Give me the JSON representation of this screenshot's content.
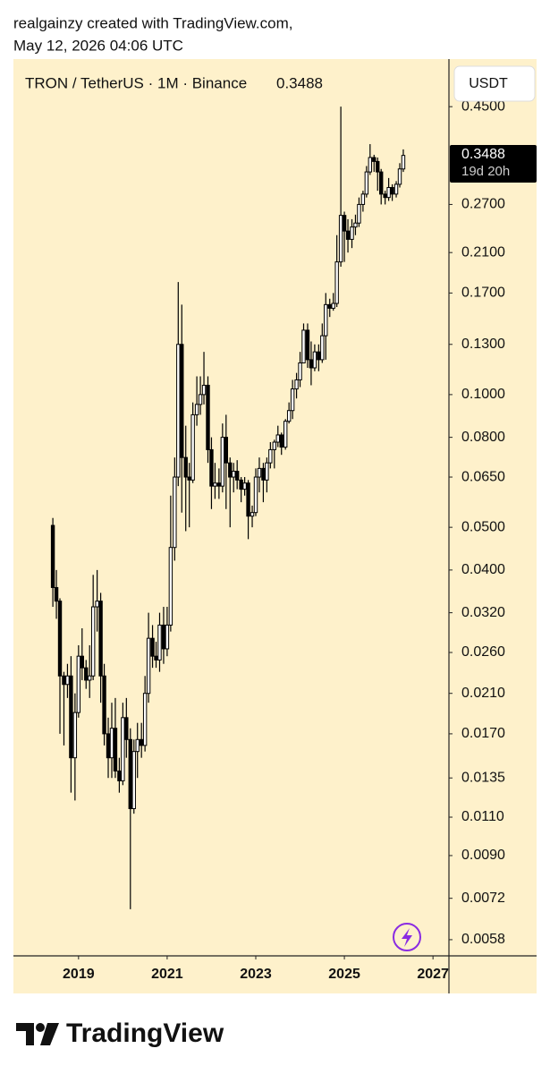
{
  "header": {
    "line1": "realgainzy created with TradingView.com,",
    "line2": "May 12, 2026 04:06 UTC"
  },
  "footer": {
    "brand": "TradingView"
  },
  "chart_data": {
    "type": "candlestick",
    "title": "TRON / TetherUS · 1M · Binance",
    "currency": "USDT",
    "countdown": "19d 20h",
    "log_scale": true,
    "grid": false,
    "up_color": "#ffffff",
    "down_color": "#000000",
    "color": "#000000",
    "background": "#fef1cb",
    "xlim": [
      2017.53,
      2027.36
    ],
    "xticks": [
      2019,
      2021,
      2023,
      2025,
      2027
    ],
    "ylim": [
      0.00533,
      0.577
    ],
    "yticks": [
      {
        "value": 0.45,
        "label": "0.4500"
      },
      {
        "value": 0.27,
        "label": "0.2700"
      },
      {
        "value": 0.21,
        "label": "0.2100"
      },
      {
        "value": 0.17,
        "label": "0.1700"
      },
      {
        "value": 0.13,
        "label": "0.1300"
      },
      {
        "value": 0.1,
        "label": "0.1000"
      },
      {
        "value": 0.08,
        "label": "0.0800"
      },
      {
        "value": 0.065,
        "label": "0.0650"
      },
      {
        "value": 0.05,
        "label": "0.0500"
      },
      {
        "value": 0.04,
        "label": "0.0400"
      },
      {
        "value": 0.032,
        "label": "0.0320"
      },
      {
        "value": 0.026,
        "label": "0.0260"
      },
      {
        "value": 0.021,
        "label": "0.0210"
      },
      {
        "value": 0.017,
        "label": "0.0170"
      },
      {
        "value": 0.0135,
        "label": "0.0135"
      },
      {
        "value": 0.011,
        "label": "0.0110"
      },
      {
        "value": 0.009,
        "label": "0.0090"
      },
      {
        "value": 0.0072,
        "label": "0.0072"
      },
      {
        "value": 0.0058,
        "label": "0.0058"
      }
    ],
    "x": [
      2018.42,
      2018.5,
      2018.58,
      2018.67,
      2018.75,
      2018.83,
      2018.92,
      2019,
      2019.08,
      2019.17,
      2019.25,
      2019.33,
      2019.42,
      2019.5,
      2019.58,
      2019.67,
      2019.75,
      2019.83,
      2019.92,
      2020,
      2020.08,
      2020.17,
      2020.25,
      2020.33,
      2020.42,
      2020.5,
      2020.58,
      2020.67,
      2020.75,
      2020.83,
      2020.92,
      2021,
      2021.08,
      2021.17,
      2021.25,
      2021.33,
      2021.42,
      2021.5,
      2021.58,
      2021.67,
      2021.75,
      2021.83,
      2021.92,
      2022,
      2022.08,
      2022.17,
      2022.25,
      2022.33,
      2022.42,
      2022.5,
      2022.58,
      2022.67,
      2022.75,
      2022.83,
      2022.92,
      2023,
      2023.08,
      2023.17,
      2023.25,
      2023.33,
      2023.42,
      2023.5,
      2023.58,
      2023.67,
      2023.75,
      2023.83,
      2023.92,
      2024,
      2024.08,
      2024.17,
      2024.25,
      2024.33,
      2024.42,
      2024.5,
      2024.58,
      2024.67,
      2024.75,
      2024.83,
      2024.92,
      2025,
      2025.08,
      2025.17,
      2025.25,
      2025.33,
      2025.42,
      2025.5,
      2025.58,
      2025.67,
      2025.75,
      2025.83,
      2025.92,
      2026,
      2026.08,
      2026.17,
      2026.25,
      2026.33
    ],
    "open": [
      0.0505,
      0.0365,
      0.034,
      0.023,
      0.022,
      0.023,
      0.015,
      0.019,
      0.0255,
      0.024,
      0.0225,
      0.023,
      0.033,
      0.034,
      0.023,
      0.017,
      0.015,
      0.0175,
      0.014,
      0.0133,
      0.0185,
      0.0165,
      0.0115,
      0.0155,
      0.0165,
      0.016,
      0.021,
      0.028,
      0.0255,
      0.025,
      0.03,
      0.0265,
      0.03,
      0.045,
      0.065,
      0.13,
      0.072,
      0.065,
      0.064,
      0.09,
      0.095,
      0.1,
      0.105,
      0.075,
      0.062,
      0.063,
      0.062,
      0.08,
      0.07,
      0.065,
      0.067,
      0.064,
      0.061,
      0.063,
      0.053,
      0.054,
      0.065,
      0.068,
      0.064,
      0.07,
      0.075,
      0.078,
      0.081,
      0.076,
      0.087,
      0.092,
      0.103,
      0.108,
      0.118,
      0.14,
      0.12,
      0.115,
      0.125,
      0.12,
      0.136,
      0.16,
      0.157,
      0.161,
      0.2,
      0.255,
      0.235,
      0.225,
      0.24,
      0.245,
      0.27,
      0.285,
      0.32,
      0.345,
      0.338,
      0.32,
      0.285,
      0.28,
      0.295,
      0.285,
      0.3,
      0.325
    ],
    "high": [
      0.0525,
      0.04,
      0.0345,
      0.0235,
      0.0245,
      0.0255,
      0.021,
      0.027,
      0.0295,
      0.025,
      0.027,
      0.039,
      0.04,
      0.0355,
      0.0245,
      0.0185,
      0.02,
      0.0205,
      0.015,
      0.02,
      0.0205,
      0.0175,
      0.0165,
      0.018,
      0.018,
      0.023,
      0.032,
      0.03,
      0.0275,
      0.032,
      0.033,
      0.033,
      0.059,
      0.072,
      0.18,
      0.16,
      0.085,
      0.07,
      0.096,
      0.11,
      0.11,
      0.125,
      0.11,
      0.08,
      0.07,
      0.068,
      0.086,
      0.09,
      0.072,
      0.07,
      0.071,
      0.065,
      0.065,
      0.064,
      0.056,
      0.068,
      0.072,
      0.07,
      0.072,
      0.078,
      0.079,
      0.085,
      0.082,
      0.088,
      0.096,
      0.108,
      0.112,
      0.125,
      0.145,
      0.145,
      0.132,
      0.13,
      0.13,
      0.145,
      0.17,
      0.165,
      0.17,
      0.23,
      0.45,
      0.26,
      0.25,
      0.25,
      0.256,
      0.28,
      0.29,
      0.33,
      0.37,
      0.35,
      0.345,
      0.325,
      0.29,
      0.31,
      0.3,
      0.305,
      0.335,
      0.36
    ],
    "low": [
      0.033,
      0.031,
      0.017,
      0.016,
      0.0205,
      0.0125,
      0.012,
      0.0185,
      0.0225,
      0.0215,
      0.0205,
      0.0225,
      0.029,
      0.02,
      0.016,
      0.0135,
      0.0135,
      0.0135,
      0.0125,
      0.013,
      0.015,
      0.0068,
      0.0112,
      0.0135,
      0.015,
      0.0155,
      0.02,
      0.024,
      0.024,
      0.0235,
      0.0245,
      0.0255,
      0.029,
      0.042,
      0.062,
      0.054,
      0.049,
      0.05,
      0.063,
      0.085,
      0.09,
      0.095,
      0.07,
      0.055,
      0.058,
      0.058,
      0.06,
      0.055,
      0.05,
      0.06,
      0.061,
      0.057,
      0.059,
      0.047,
      0.05,
      0.053,
      0.06,
      0.057,
      0.06,
      0.068,
      0.068,
      0.076,
      0.073,
      0.075,
      0.086,
      0.088,
      0.098,
      0.104,
      0.118,
      0.115,
      0.105,
      0.113,
      0.113,
      0.118,
      0.12,
      0.15,
      0.155,
      0.158,
      0.195,
      0.2,
      0.21,
      0.215,
      0.23,
      0.24,
      0.26,
      0.28,
      0.315,
      0.32,
      0.29,
      0.27,
      0.27,
      0.275,
      0.275,
      0.28,
      0.295,
      0.32
    ],
    "close": [
      0.0365,
      0.034,
      0.023,
      0.022,
      0.023,
      0.015,
      0.019,
      0.0255,
      0.024,
      0.0225,
      0.023,
      0.033,
      0.034,
      0.023,
      0.017,
      0.015,
      0.0175,
      0.014,
      0.0133,
      0.0185,
      0.0165,
      0.0115,
      0.0155,
      0.0165,
      0.016,
      0.021,
      0.028,
      0.0255,
      0.025,
      0.03,
      0.0265,
      0.03,
      0.045,
      0.065,
      0.13,
      0.072,
      0.065,
      0.064,
      0.09,
      0.095,
      0.1,
      0.105,
      0.075,
      0.062,
      0.063,
      0.062,
      0.08,
      0.07,
      0.065,
      0.067,
      0.064,
      0.061,
      0.063,
      0.053,
      0.054,
      0.065,
      0.068,
      0.064,
      0.07,
      0.075,
      0.078,
      0.081,
      0.076,
      0.087,
      0.092,
      0.103,
      0.108,
      0.118,
      0.14,
      0.12,
      0.115,
      0.125,
      0.12,
      0.136,
      0.16,
      0.157,
      0.161,
      0.2,
      0.255,
      0.235,
      0.225,
      0.24,
      0.245,
      0.27,
      0.285,
      0.32,
      0.345,
      0.338,
      0.32,
      0.285,
      0.28,
      0.295,
      0.285,
      0.3,
      0.325,
      0.3488
    ]
  }
}
